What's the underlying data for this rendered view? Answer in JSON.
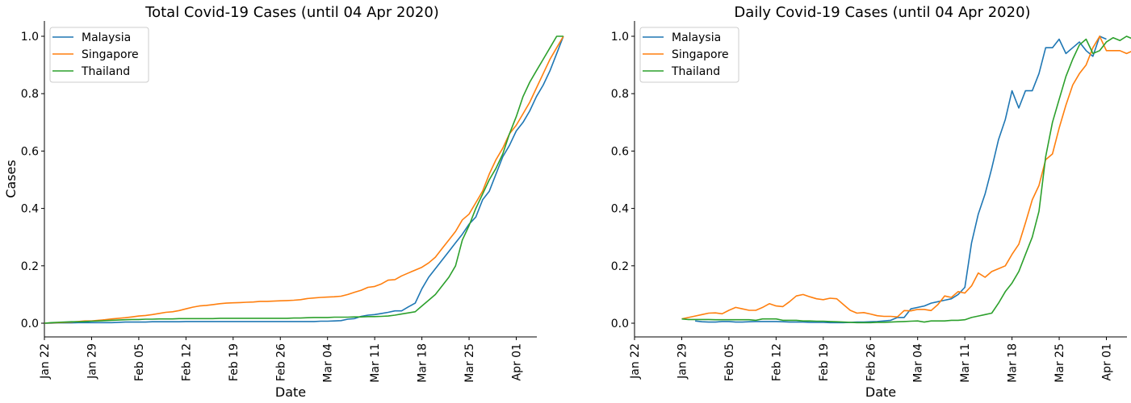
{
  "chart_data": [
    {
      "type": "line",
      "title": "Total Covid-19 Cases (until 04 Apr 2020)",
      "xlabel": "Date",
      "ylabel": "Cases",
      "x_start": "2020-01-22",
      "x_ticks": [
        "Jan 22",
        "Jan 29",
        "Feb 05",
        "Feb 12",
        "Feb 19",
        "Feb 26",
        "Mar 04",
        "Mar 11",
        "Mar 18",
        "Mar 25",
        "Apr 01"
      ],
      "y_ticks": [
        "0.0",
        "0.2",
        "0.4",
        "0.6",
        "0.8",
        "1.0"
      ],
      "ylim": [
        -0.05,
        1.05
      ],
      "grid": false,
      "legend": "top-left",
      "series": [
        {
          "name": "Malaysia",
          "color": "#1f77b4",
          "values": [
            0.0,
            0.0,
            0.001,
            0.001,
            0.001,
            0.002,
            0.002,
            0.002,
            0.002,
            0.002,
            0.002,
            0.003,
            0.004,
            0.004,
            0.004,
            0.004,
            0.005,
            0.005,
            0.005,
            0.005,
            0.005,
            0.006,
            0.006,
            0.006,
            0.006,
            0.006,
            0.006,
            0.006,
            0.006,
            0.006,
            0.006,
            0.006,
            0.006,
            0.006,
            0.006,
            0.006,
            0.006,
            0.006,
            0.006,
            0.006,
            0.006,
            0.007,
            0.007,
            0.008,
            0.009,
            0.014,
            0.016,
            0.024,
            0.028,
            0.03,
            0.034,
            0.038,
            0.043,
            0.043,
            0.057,
            0.07,
            0.12,
            0.16,
            0.19,
            0.22,
            0.25,
            0.28,
            0.31,
            0.345,
            0.37,
            0.43,
            0.46,
            0.52,
            0.58,
            0.62,
            0.67,
            0.7,
            0.74,
            0.79,
            0.83,
            0.88,
            0.94,
            1.0
          ]
        },
        {
          "name": "Singapore",
          "color": "#ff7f0e",
          "values": [
            0.0,
            0.001,
            0.002,
            0.003,
            0.004,
            0.006,
            0.008,
            0.008,
            0.01,
            0.012,
            0.015,
            0.017,
            0.019,
            0.022,
            0.025,
            0.027,
            0.03,
            0.034,
            0.038,
            0.04,
            0.044,
            0.05,
            0.056,
            0.06,
            0.062,
            0.065,
            0.068,
            0.07,
            0.071,
            0.072,
            0.073,
            0.074,
            0.076,
            0.076,
            0.077,
            0.078,
            0.079,
            0.08,
            0.082,
            0.086,
            0.088,
            0.09,
            0.091,
            0.092,
            0.094,
            0.1,
            0.108,
            0.115,
            0.125,
            0.128,
            0.137,
            0.15,
            0.152,
            0.165,
            0.175,
            0.185,
            0.195,
            0.21,
            0.23,
            0.26,
            0.29,
            0.32,
            0.36,
            0.38,
            0.42,
            0.46,
            0.52,
            0.57,
            0.61,
            0.66,
            0.69,
            0.73,
            0.77,
            0.82,
            0.87,
            0.92,
            0.96,
            1.0
          ]
        },
        {
          "name": "Thailand",
          "color": "#2ca02c",
          "values": [
            0.0,
            0.002,
            0.003,
            0.004,
            0.005,
            0.005,
            0.006,
            0.007,
            0.008,
            0.009,
            0.01,
            0.011,
            0.012,
            0.013,
            0.013,
            0.014,
            0.014,
            0.015,
            0.015,
            0.015,
            0.016,
            0.016,
            0.016,
            0.016,
            0.016,
            0.016,
            0.017,
            0.017,
            0.017,
            0.017,
            0.017,
            0.017,
            0.017,
            0.017,
            0.017,
            0.017,
            0.017,
            0.018,
            0.018,
            0.019,
            0.02,
            0.02,
            0.02,
            0.021,
            0.021,
            0.021,
            0.022,
            0.022,
            0.023,
            0.023,
            0.024,
            0.025,
            0.028,
            0.032,
            0.036,
            0.04,
            0.06,
            0.08,
            0.1,
            0.13,
            0.16,
            0.2,
            0.29,
            0.34,
            0.4,
            0.45,
            0.5,
            0.54,
            0.59,
            0.66,
            0.72,
            0.79,
            0.84,
            0.88,
            0.92,
            0.96,
            1.0,
            1.0
          ]
        }
      ]
    },
    {
      "type": "line",
      "title": "Daily Covid-19 Cases (until 04 Apr 2020)",
      "xlabel": "Date",
      "ylabel": "",
      "x_start": "2020-01-22",
      "x_ticks": [
        "Jan 22",
        "Jan 29",
        "Feb 05",
        "Feb 12",
        "Feb 19",
        "Feb 26",
        "Mar 04",
        "Mar 11",
        "Mar 18",
        "Mar 25",
        "Apr 01"
      ],
      "y_ticks": [
        "0.0",
        "0.2",
        "0.4",
        "0.6",
        "0.8",
        "1.0"
      ],
      "ylim": [
        -0.05,
        1.05
      ],
      "grid": false,
      "legend": "top-left",
      "series": [
        {
          "name": "Malaysia",
          "color": "#1f77b4",
          "x_offset": 9,
          "values": [
            0.008,
            0.005,
            0.004,
            0.004,
            0.006,
            0.006,
            0.004,
            0.004,
            0.005,
            0.006,
            0.006,
            0.006,
            0.006,
            0.005,
            0.004,
            0.004,
            0.004,
            0.003,
            0.003,
            0.003,
            0.002,
            0.002,
            0.002,
            0.003,
            0.004,
            0.004,
            0.005,
            0.006,
            0.008,
            0.01,
            0.02,
            0.02,
            0.05,
            0.055,
            0.06,
            0.07,
            0.075,
            0.08,
            0.085,
            0.1,
            0.125,
            0.28,
            0.38,
            0.45,
            0.54,
            0.64,
            0.71,
            0.81,
            0.75,
            0.81,
            0.81,
            0.87,
            0.96,
            0.96,
            0.99,
            0.94,
            0.96,
            0.98,
            0.95,
            0.93,
            1.0,
            0.99
          ]
        },
        {
          "name": "Singapore",
          "color": "#ff7f0e",
          "x_offset": 7,
          "values": [
            0.015,
            0.02,
            0.025,
            0.03,
            0.035,
            0.036,
            0.033,
            0.045,
            0.055,
            0.05,
            0.045,
            0.045,
            0.055,
            0.068,
            0.06,
            0.058,
            0.075,
            0.095,
            0.1,
            0.092,
            0.085,
            0.082,
            0.087,
            0.085,
            0.065,
            0.045,
            0.035,
            0.037,
            0.032,
            0.026,
            0.024,
            0.024,
            0.022,
            0.044,
            0.043,
            0.048,
            0.048,
            0.044,
            0.065,
            0.095,
            0.09,
            0.11,
            0.105,
            0.13,
            0.175,
            0.16,
            0.18,
            0.19,
            0.2,
            0.24,
            0.275,
            0.35,
            0.43,
            0.48,
            0.57,
            0.59,
            0.68,
            0.76,
            0.83,
            0.87,
            0.9,
            0.96,
            1.0,
            0.95,
            0.95,
            0.95,
            0.94,
            0.95,
            1.0,
            0.97
          ]
        },
        {
          "name": "Thailand",
          "color": "#2ca02c",
          "x_offset": 7,
          "values": [
            0.015,
            0.013,
            0.013,
            0.013,
            0.013,
            0.012,
            0.012,
            0.012,
            0.012,
            0.012,
            0.012,
            0.01,
            0.015,
            0.015,
            0.015,
            0.01,
            0.01,
            0.01,
            0.008,
            0.008,
            0.007,
            0.007,
            0.006,
            0.005,
            0.004,
            0.003,
            0.002,
            0.002,
            0.002,
            0.003,
            0.003,
            0.004,
            0.005,
            0.006,
            0.007,
            0.008,
            0.004,
            0.008,
            0.008,
            0.008,
            0.01,
            0.01,
            0.012,
            0.02,
            0.025,
            0.03,
            0.035,
            0.07,
            0.11,
            0.14,
            0.18,
            0.24,
            0.3,
            0.39,
            0.58,
            0.7,
            0.78,
            0.86,
            0.92,
            0.97,
            0.99,
            0.94,
            0.95,
            0.98,
            0.995,
            0.985,
            1.0,
            0.99
          ]
        }
      ]
    }
  ]
}
